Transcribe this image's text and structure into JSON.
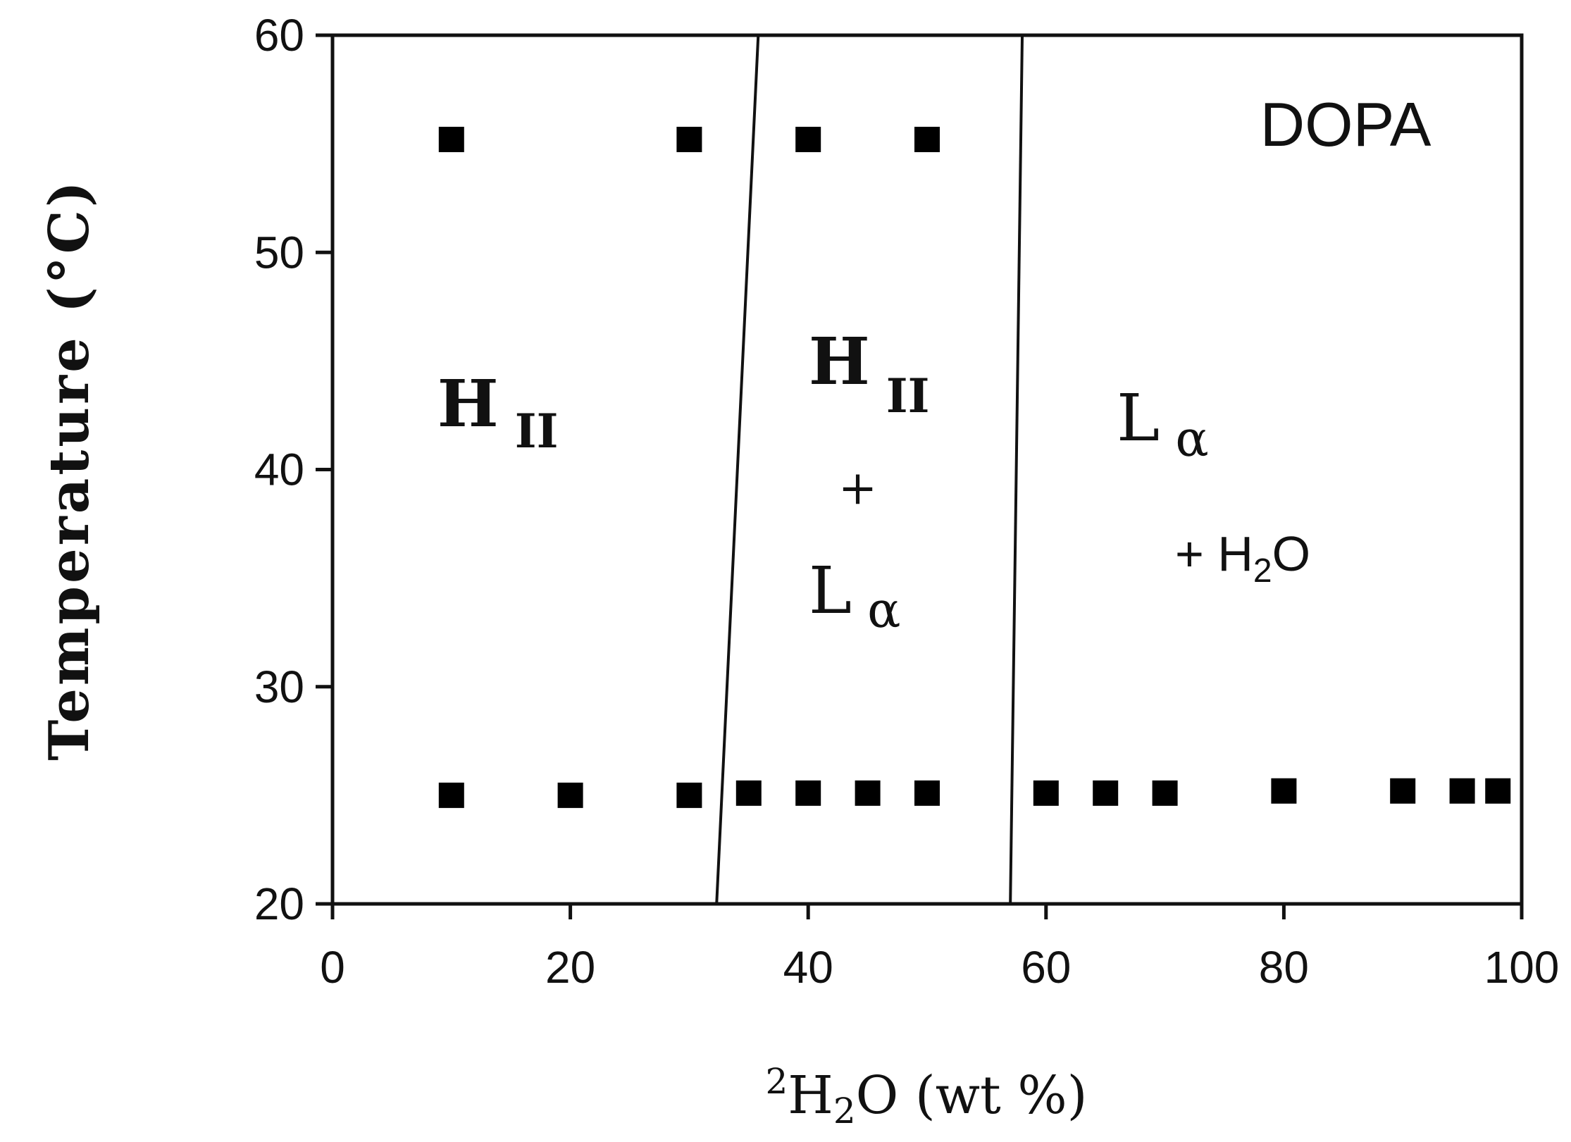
{
  "chart_data": {
    "type": "scatter",
    "title": "",
    "xlabel": {
      "sup": "2",
      "main": "H",
      "sub": "2",
      "rest": "O (wt %)"
    },
    "ylabel": "Temperature (°C)",
    "xlim": [
      0,
      100
    ],
    "ylim": [
      20,
      60
    ],
    "xticks": [
      0,
      20,
      40,
      60,
      80,
      100
    ],
    "yticks": [
      20,
      30,
      40,
      50,
      60
    ],
    "grid": false,
    "annotation": "DOPA",
    "phase_labels": [
      {
        "main": "H",
        "sub": "II",
        "pos": [
          10,
          42.5
        ]
      },
      {
        "main": "H",
        "sub": "II",
        "plus": "+",
        "main2": "L",
        "sub2": "α",
        "pos": [
          43,
          43
        ]
      },
      {
        "main": "L",
        "sub": "α",
        "suffix": "+ H",
        "suffix_sub": "2",
        "suffix_end": "O",
        "pos": [
          68,
          41.5
        ]
      }
    ],
    "boundaries": [
      {
        "x": [
          32.3,
          35.8
        ],
        "y": [
          20,
          60
        ]
      },
      {
        "x": [
          57.0,
          58.0
        ],
        "y": [
          20,
          60
        ]
      }
    ],
    "series": [
      {
        "points": [
          [
            10,
            55.2
          ],
          [
            30,
            55.2
          ],
          [
            40,
            55.2
          ],
          [
            50,
            55.2
          ],
          [
            10,
            25.0
          ],
          [
            20,
            25.0
          ],
          [
            30,
            25.0
          ],
          [
            35,
            25.1
          ],
          [
            40,
            25.1
          ],
          [
            45,
            25.1
          ],
          [
            50,
            25.1
          ],
          [
            60,
            25.1
          ],
          [
            65,
            25.1
          ],
          [
            70,
            25.1
          ],
          [
            80,
            25.2
          ],
          [
            90,
            25.2
          ],
          [
            95,
            25.2
          ],
          [
            98,
            25.2
          ]
        ]
      }
    ],
    "marker": "square",
    "color": "#000000"
  }
}
